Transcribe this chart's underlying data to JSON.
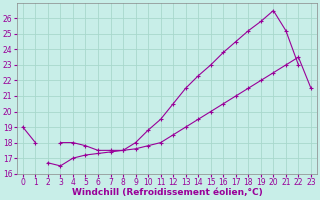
{
  "xlabel": "Windchill (Refroidissement éolien,°C)",
  "background_color": "#c8eee8",
  "grid_color": "#a8d8cc",
  "line_color": "#990099",
  "x": [
    0,
    1,
    2,
    3,
    4,
    5,
    6,
    7,
    8,
    9,
    10,
    11,
    12,
    13,
    14,
    15,
    16,
    17,
    18,
    19,
    20,
    21,
    22,
    23
  ],
  "line1_y": [
    19.0,
    18.0,
    null,
    null,
    null,
    null,
    null,
    null,
    null,
    null,
    null,
    null,
    null,
    null,
    null,
    null,
    null,
    null,
    null,
    null,
    null,
    null,
    null,
    null
  ],
  "line2_y": [
    null,
    null,
    16.7,
    16.5,
    17.0,
    17.2,
    17.3,
    17.4,
    17.5,
    17.6,
    17.8,
    18.0,
    18.5,
    19.0,
    19.5,
    20.0,
    20.5,
    21.0,
    21.5,
    22.0,
    22.5,
    23.0,
    23.5,
    21.5
  ],
  "line3_y": [
    null,
    null,
    null,
    18.0,
    18.0,
    17.8,
    17.5,
    17.5,
    17.5,
    18.0,
    18.8,
    19.5,
    20.5,
    21.5,
    22.3,
    23.0,
    23.8,
    24.5,
    25.2,
    25.8,
    26.5,
    25.2,
    23.0,
    null
  ],
  "line4_y": [
    null,
    null,
    null,
    null,
    null,
    null,
    null,
    null,
    null,
    null,
    null,
    null,
    null,
    null,
    null,
    null,
    null,
    null,
    null,
    null,
    26.7,
    25.0,
    null,
    null
  ],
  "ylim": [
    16,
    27
  ],
  "xlim": [
    -0.5,
    23.5
  ],
  "yticks": [
    16,
    17,
    18,
    19,
    20,
    21,
    22,
    23,
    24,
    25,
    26
  ],
  "xticks": [
    0,
    1,
    2,
    3,
    4,
    5,
    6,
    7,
    8,
    9,
    10,
    11,
    12,
    13,
    14,
    15,
    16,
    17,
    18,
    19,
    20,
    21,
    22,
    23
  ],
  "tick_fontsize": 5.5,
  "label_fontsize": 6.5
}
